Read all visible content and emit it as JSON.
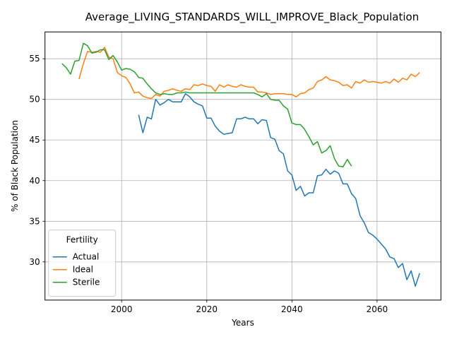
{
  "chart_data": {
    "type": "line",
    "title": "Average_LIVING_STANDARDS_WILL_IMPROVE_Black_Population",
    "xlabel": "Years",
    "ylabel": "% of Black Population",
    "xlim": [
      1982,
      2075
    ],
    "ylim": [
      25.3,
      58.3
    ],
    "xticks": [
      2000,
      2020,
      2040,
      2060
    ],
    "yticks": [
      30,
      35,
      40,
      45,
      50,
      55
    ],
    "grid": true,
    "legend": {
      "title": "Fertility",
      "placement": "lower-left"
    },
    "series": [
      {
        "name": "Actual",
        "color": "#1f77b4",
        "x": [
          2004,
          2005,
          2006,
          2007,
          2008,
          2009,
          2010,
          2011,
          2012,
          2013,
          2014,
          2015,
          2016,
          2017,
          2018,
          2019,
          2020,
          2021,
          2022,
          2023,
          2024,
          2025,
          2026,
          2027,
          2028,
          2029,
          2030,
          2031,
          2032,
          2033,
          2034,
          2035,
          2036,
          2037,
          2038,
          2039,
          2040,
          2041,
          2042,
          2043,
          2044,
          2045,
          2046,
          2047,
          2048,
          2049,
          2050,
          2051,
          2052,
          2053,
          2054,
          2055,
          2056,
          2057,
          2058,
          2059,
          2060,
          2061,
          2062,
          2063,
          2064,
          2065,
          2066,
          2067,
          2068,
          2069,
          2070
        ],
        "y": [
          48.1,
          45.9,
          47.8,
          47.6,
          50.0,
          49.3,
          49.6,
          50.0,
          49.7,
          49.7,
          49.7,
          50.7,
          50.3,
          49.7,
          49.4,
          49.2,
          47.7,
          47.7,
          46.7,
          46.1,
          45.7,
          45.8,
          45.9,
          47.6,
          47.6,
          47.8,
          47.6,
          47.6,
          47.0,
          47.5,
          47.4,
          45.3,
          45.1,
          43.7,
          43.3,
          41.2,
          40.7,
          38.8,
          39.3,
          38.1,
          38.5,
          38.5,
          40.6,
          40.7,
          41.4,
          40.8,
          41.2,
          40.9,
          39.6,
          39.6,
          38.4,
          37.8,
          35.7,
          34.8,
          33.6,
          33.3,
          32.8,
          32.2,
          31.6,
          30.6,
          30.4,
          29.3,
          29.8,
          27.8,
          28.9,
          27.0,
          28.6
        ]
      },
      {
        "name": "Ideal",
        "color": "#ff7f0e",
        "x": [
          1990,
          1991,
          1992,
          1993,
          1994,
          1995,
          1996,
          1997,
          1998,
          1999,
          2000,
          2001,
          2002,
          2003,
          2004,
          2005,
          2006,
          2007,
          2008,
          2009,
          2010,
          2011,
          2012,
          2013,
          2014,
          2015,
          2016,
          2017,
          2018,
          2019,
          2020,
          2021,
          2022,
          2023,
          2024,
          2025,
          2026,
          2027,
          2028,
          2029,
          2030,
          2031,
          2032,
          2033,
          2034,
          2035,
          2036,
          2037,
          2038,
          2039,
          2040,
          2041,
          2042,
          2043,
          2044,
          2045,
          2046,
          2047,
          2048,
          2049,
          2050,
          2051,
          2052,
          2053,
          2054,
          2055,
          2056,
          2057,
          2058,
          2059,
          2060,
          2061,
          2062,
          2063,
          2064,
          2065,
          2066,
          2067,
          2068,
          2069,
          2070
        ],
        "y": [
          52.5,
          54.4,
          55.9,
          55.8,
          55.9,
          55.8,
          56.4,
          55.2,
          55.0,
          53.3,
          52.9,
          52.7,
          51.9,
          50.8,
          50.9,
          50.4,
          50.2,
          50.1,
          50.6,
          50.4,
          51.0,
          51.1,
          51.3,
          51.1,
          51.0,
          51.3,
          51.2,
          51.8,
          51.7,
          51.9,
          51.7,
          51.6,
          51.0,
          51.8,
          51.5,
          51.8,
          51.6,
          51.5,
          51.8,
          51.6,
          51.5,
          51.5,
          50.9,
          50.9,
          50.8,
          50.6,
          50.7,
          50.7,
          50.7,
          50.6,
          50.6,
          50.3,
          50.7,
          50.8,
          51.2,
          51.4,
          52.2,
          52.4,
          52.8,
          52.4,
          52.3,
          52.1,
          51.7,
          51.8,
          51.4,
          52.2,
          52.0,
          52.4,
          52.1,
          52.2,
          52.1,
          52.0,
          52.2,
          52.0,
          52.5,
          52.1,
          52.6,
          52.4,
          53.1,
          52.8,
          53.3
        ]
      },
      {
        "name": "Sterile",
        "color": "#2ca02c",
        "x": [
          1986,
          1987,
          1988,
          1989,
          1990,
          1991,
          1992,
          1993,
          1994,
          1995,
          1996,
          1997,
          1998,
          1999,
          2000,
          2001,
          2002,
          2003,
          2004,
          2005,
          2006,
          2007,
          2008,
          2009,
          2010,
          2011,
          2012,
          2013,
          2014,
          2015,
          2016,
          2017,
          2018,
          2019,
          2020,
          2021,
          2022,
          2023,
          2024,
          2025,
          2026,
          2027,
          2028,
          2029,
          2030,
          2031,
          2032,
          2033,
          2034,
          2035,
          2036,
          2037,
          2038,
          2039,
          2040,
          2041,
          2042,
          2043,
          2044,
          2045,
          2046,
          2047,
          2048,
          2049,
          2050,
          2051,
          2052,
          2053,
          2054
        ],
        "y": [
          54.4,
          53.9,
          53.1,
          54.7,
          54.8,
          56.9,
          56.6,
          55.7,
          55.8,
          56.1,
          56.1,
          54.9,
          55.4,
          54.6,
          53.6,
          53.8,
          53.7,
          53.4,
          52.7,
          52.6,
          51.9,
          51.3,
          50.8,
          50.6,
          50.7,
          50.6,
          50.6,
          50.8,
          50.8,
          50.9,
          50.8,
          50.8,
          50.8,
          50.8,
          50.8,
          50.8,
          50.8,
          50.8,
          50.8,
          50.8,
          50.8,
          50.8,
          50.8,
          50.8,
          50.8,
          50.8,
          50.6,
          50.3,
          50.7,
          50.0,
          49.9,
          49.9,
          49.2,
          48.8,
          47.1,
          46.9,
          46.9,
          46.3,
          45.4,
          44.4,
          44.8,
          43.4,
          43.7,
          44.3,
          42.7,
          41.8,
          41.7,
          42.6,
          41.8
        ]
      }
    ]
  }
}
